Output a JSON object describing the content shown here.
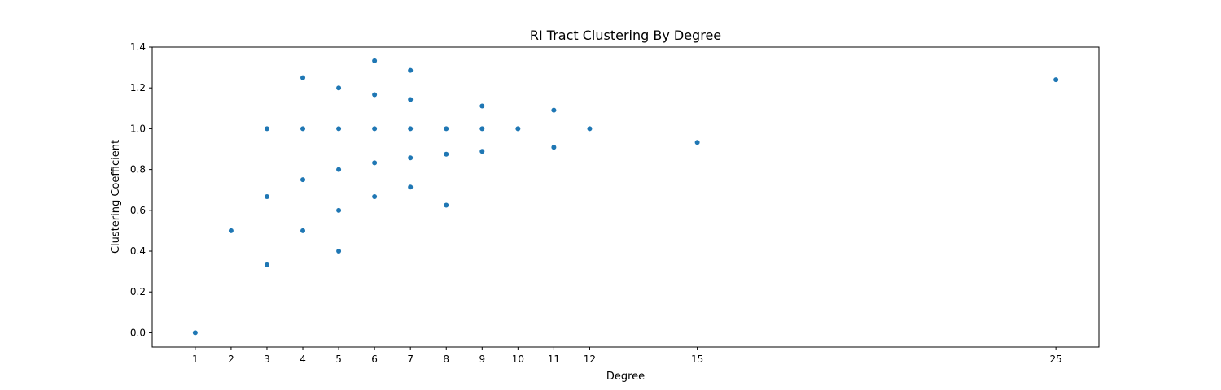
{
  "chart_data": {
    "type": "scatter",
    "title": "RI Tract Clustering By Degree",
    "xlabel": "Degree",
    "ylabel": "Clustering Coefficient",
    "xlim": [
      -0.2,
      26.2
    ],
    "ylim": [
      -0.07,
      1.4
    ],
    "xticks": [
      1,
      2,
      3,
      4,
      5,
      6,
      7,
      8,
      9,
      10,
      11,
      12,
      15,
      25
    ],
    "yticks": [
      0.0,
      0.2,
      0.4,
      0.6,
      0.8,
      1.0,
      1.2,
      1.4
    ],
    "ytick_labels": [
      "0.0",
      "0.2",
      "0.4",
      "0.6",
      "0.8",
      "1.0",
      "1.2",
      "1.4"
    ],
    "grid": false,
    "marker_color": "#1f77b4",
    "points": [
      {
        "x": 1,
        "y": 0.0
      },
      {
        "x": 2,
        "y": 0.5
      },
      {
        "x": 3,
        "y": 0.333
      },
      {
        "x": 3,
        "y": 0.667
      },
      {
        "x": 3,
        "y": 1.0
      },
      {
        "x": 4,
        "y": 0.5
      },
      {
        "x": 4,
        "y": 0.75
      },
      {
        "x": 4,
        "y": 1.0
      },
      {
        "x": 4,
        "y": 1.25
      },
      {
        "x": 5,
        "y": 0.4
      },
      {
        "x": 5,
        "y": 0.6
      },
      {
        "x": 5,
        "y": 0.8
      },
      {
        "x": 5,
        "y": 1.0
      },
      {
        "x": 5,
        "y": 1.2
      },
      {
        "x": 6,
        "y": 0.667
      },
      {
        "x": 6,
        "y": 0.833
      },
      {
        "x": 6,
        "y": 1.0
      },
      {
        "x": 6,
        "y": 1.167
      },
      {
        "x": 6,
        "y": 1.333
      },
      {
        "x": 7,
        "y": 0.714
      },
      {
        "x": 7,
        "y": 0.857
      },
      {
        "x": 7,
        "y": 1.0
      },
      {
        "x": 7,
        "y": 1.143
      },
      {
        "x": 7,
        "y": 1.286
      },
      {
        "x": 8,
        "y": 0.625
      },
      {
        "x": 8,
        "y": 0.875
      },
      {
        "x": 8,
        "y": 1.0
      },
      {
        "x": 9,
        "y": 0.889
      },
      {
        "x": 9,
        "y": 1.0
      },
      {
        "x": 9,
        "y": 1.111
      },
      {
        "x": 10,
        "y": 1.0
      },
      {
        "x": 11,
        "y": 0.909
      },
      {
        "x": 11,
        "y": 1.091
      },
      {
        "x": 12,
        "y": 1.0
      },
      {
        "x": 15,
        "y": 0.933
      },
      {
        "x": 25,
        "y": 1.24
      }
    ]
  }
}
